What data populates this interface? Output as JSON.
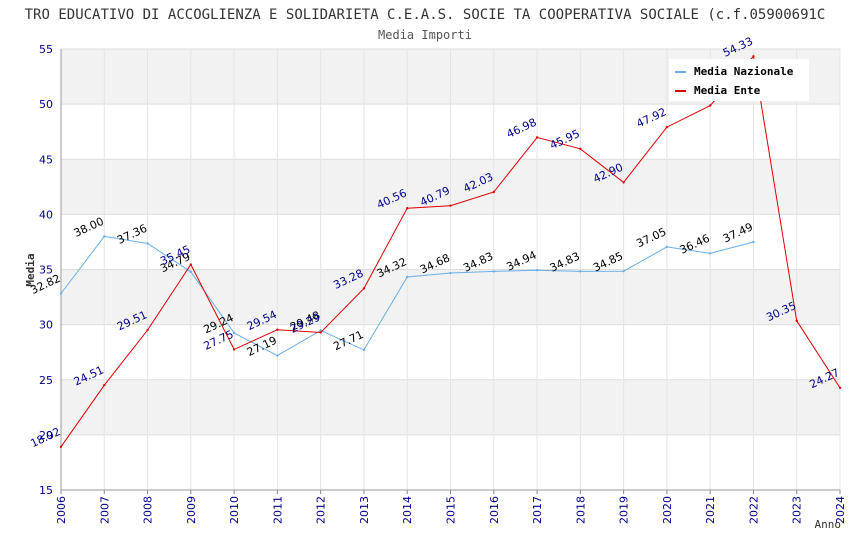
{
  "chart_data": {
    "type": "line",
    "title": "TRO EDUCATIVO DI ACCOGLIENZA E SOLIDARIETA C.E.A.S. SOCIE TA COOPERATIVA SOCIALE (c.f.05900691C",
    "subtitle": "Media Importi",
    "xlabel": "Anno",
    "ylabel": "Media",
    "ylim": [
      15,
      55
    ],
    "yticks": [
      "15",
      "20",
      "25",
      "30",
      "35",
      "40",
      "45",
      "50",
      "55"
    ],
    "categories": [
      "2006",
      "2007",
      "2008",
      "2009",
      "2010",
      "2011",
      "2012",
      "2013",
      "2014",
      "2015",
      "2016",
      "2017",
      "2018",
      "2019",
      "2020",
      "2021",
      "2022",
      "2023",
      "2024"
    ],
    "grid": true,
    "legend_position": "top-right",
    "series": [
      {
        "name": "Media Nazionale",
        "color": "#6aaee8",
        "label_color": "#000000",
        "values": [
          32.82,
          38.0,
          37.36,
          34.79,
          29.24,
          27.19,
          29.48,
          27.71,
          34.32,
          34.68,
          34.83,
          34.94,
          34.83,
          34.85,
          37.05,
          36.46,
          37.49,
          null,
          null
        ],
        "labels": [
          "32.82",
          "38.00",
          "37.36",
          "34.79",
          "29.24",
          "27.19",
          "29.48",
          "27.71",
          "34.32",
          "34.68",
          "34.83",
          "34.94",
          "34.83",
          "34.85",
          "37.05",
          "36.46",
          "37.49",
          "",
          ""
        ]
      },
      {
        "name": "Media Ente",
        "color": "#dd0000",
        "label_color": "#00008b",
        "values": [
          18.92,
          24.51,
          29.51,
          35.45,
          27.75,
          29.54,
          29.29,
          33.28,
          40.56,
          40.79,
          42.03,
          46.98,
          45.95,
          42.9,
          47.92,
          49.87,
          54.33,
          30.35,
          24.27
        ],
        "labels": [
          "18.92",
          "24.51",
          "29.51",
          "35.45",
          "27.75",
          "29.54",
          "29.29",
          "33.28",
          "40.56",
          "40.79",
          "42.03",
          "46.98",
          "45.95",
          "42.90",
          "47.92",
          "",
          "54.33",
          "30.35",
          "24.27"
        ]
      }
    ]
  }
}
